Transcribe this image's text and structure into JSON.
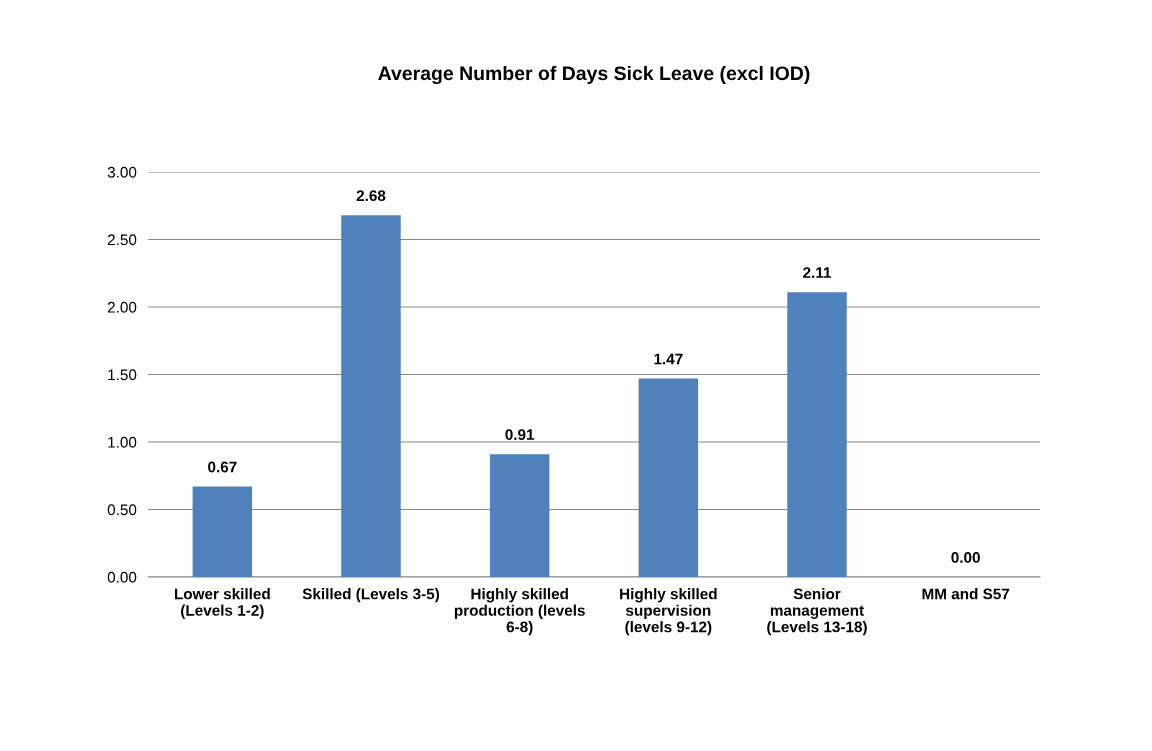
{
  "chart_data": {
    "type": "bar",
    "title": "Average Number of Days Sick Leave (excl IOD)",
    "categories": [
      "Lower skilled\n(Levels 1-2)",
      "Skilled (Levels 3-5)",
      "Highly skilled\nproduction (levels\n6-8)",
      "Highly skilled\nsupervision\n(levels 9-12)",
      "Senior\nmanagement\n(Levels 13-18)",
      "MM and S57"
    ],
    "values": [
      0.67,
      2.68,
      0.91,
      1.47,
      2.11,
      0.0
    ],
    "value_labels": [
      "0.67",
      "2.68",
      "0.91",
      "1.47",
      "2.11",
      "0.00"
    ],
    "color": "#4f81bd",
    "ylim": [
      0,
      3
    ],
    "yticks": [
      {
        "value": 0,
        "label": "0.00"
      },
      {
        "value": 0.5,
        "label": "0.50"
      },
      {
        "value": 1,
        "label": "1.00"
      },
      {
        "value": 1.5,
        "label": "1.50"
      },
      {
        "value": 2,
        "label": "2.00"
      },
      {
        "value": 2.5,
        "label": "2.50"
      },
      {
        "value": 3,
        "label": "3.00"
      }
    ],
    "grid": "y"
  }
}
